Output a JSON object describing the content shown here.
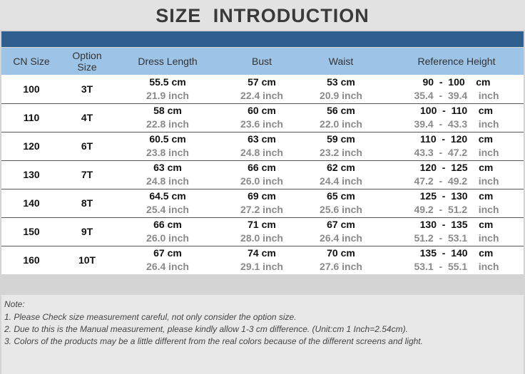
{
  "header": {
    "title": "SIZE INTRODUCTION"
  },
  "table": {
    "headers": [
      "CN Size",
      "Option Size",
      "Dress Length",
      "Bust",
      "Waist",
      "Reference Height"
    ],
    "rows": [
      {
        "size": "100",
        "option": "3T",
        "dress_length": [
          "55.5 cm",
          "21.9 inch"
        ],
        "bust": [
          "57 cm",
          "22.4 inch"
        ],
        "waist": [
          "53 cm",
          "20.9 inch"
        ],
        "height": [
          "90  -  100    cm",
          "35.4  -  39.4    inch"
        ]
      },
      {
        "size": "110",
        "option": "4T",
        "dress_length": [
          "58 cm",
          "22.8 inch"
        ],
        "bust": [
          "60 cm",
          "23.6 inch"
        ],
        "waist": [
          "56 cm",
          "22.0 inch"
        ],
        "height": [
          "100  -  110    cm",
          "39.4  -  43.3    inch"
        ]
      },
      {
        "size": "120",
        "option": "6T",
        "dress_length": [
          "60.5 cm",
          "23.8 inch"
        ],
        "bust": [
          "63 cm",
          "24.8 inch"
        ],
        "waist": [
          "59 cm",
          "23.2 inch"
        ],
        "height": [
          "110  -  120    cm",
          "43.3  -  47.2    inch"
        ]
      },
      {
        "size": "130",
        "option": "7T",
        "dress_length": [
          "63 cm",
          "24.8 inch"
        ],
        "bust": [
          "66 cm",
          "26.0 inch"
        ],
        "waist": [
          "62 cm",
          "24.4 inch"
        ],
        "height": [
          "120  -  125    cm",
          "47.2  -  49.2    inch"
        ]
      },
      {
        "size": "140",
        "option": "8T",
        "dress_length": [
          "64.5 cm",
          "25.4 inch"
        ],
        "bust": [
          "69 cm",
          "27.2 inch"
        ],
        "waist": [
          "65 cm",
          "25.6 inch"
        ],
        "height": [
          "125  -  130    cm",
          "49.2  -  51.2    inch"
        ]
      },
      {
        "size": "150",
        "option": "9T",
        "dress_length": [
          "66 cm",
          "26.0 inch"
        ],
        "bust": [
          "71 cm",
          "28.0 inch"
        ],
        "waist": [
          "67 cm",
          "26.4 inch"
        ],
        "height": [
          "130  -  135    cm",
          "51.2  -  53.1    inch"
        ]
      },
      {
        "size": "160",
        "option": "10T",
        "dress_length": [
          "67 cm",
          "26.4 inch"
        ],
        "bust": [
          "74 cm",
          "29.1 inch"
        ],
        "waist": [
          "70 cm",
          "27.6 inch"
        ],
        "height": [
          "135  -  140    cm",
          "53.1  -  55.1    inch"
        ]
      }
    ]
  },
  "notes": {
    "label": "Note:",
    "items": [
      "1. Please Check size measurement careful, not only consider the option size.",
      "2. Due to this is the Manual measurement, please kindly allow 1-3 cm difference.  (Unit:cm  1 Inch=2.54cm).",
      "3. Colors of the products may be a little different from the real colors because of the different screens and light."
    ]
  }
}
